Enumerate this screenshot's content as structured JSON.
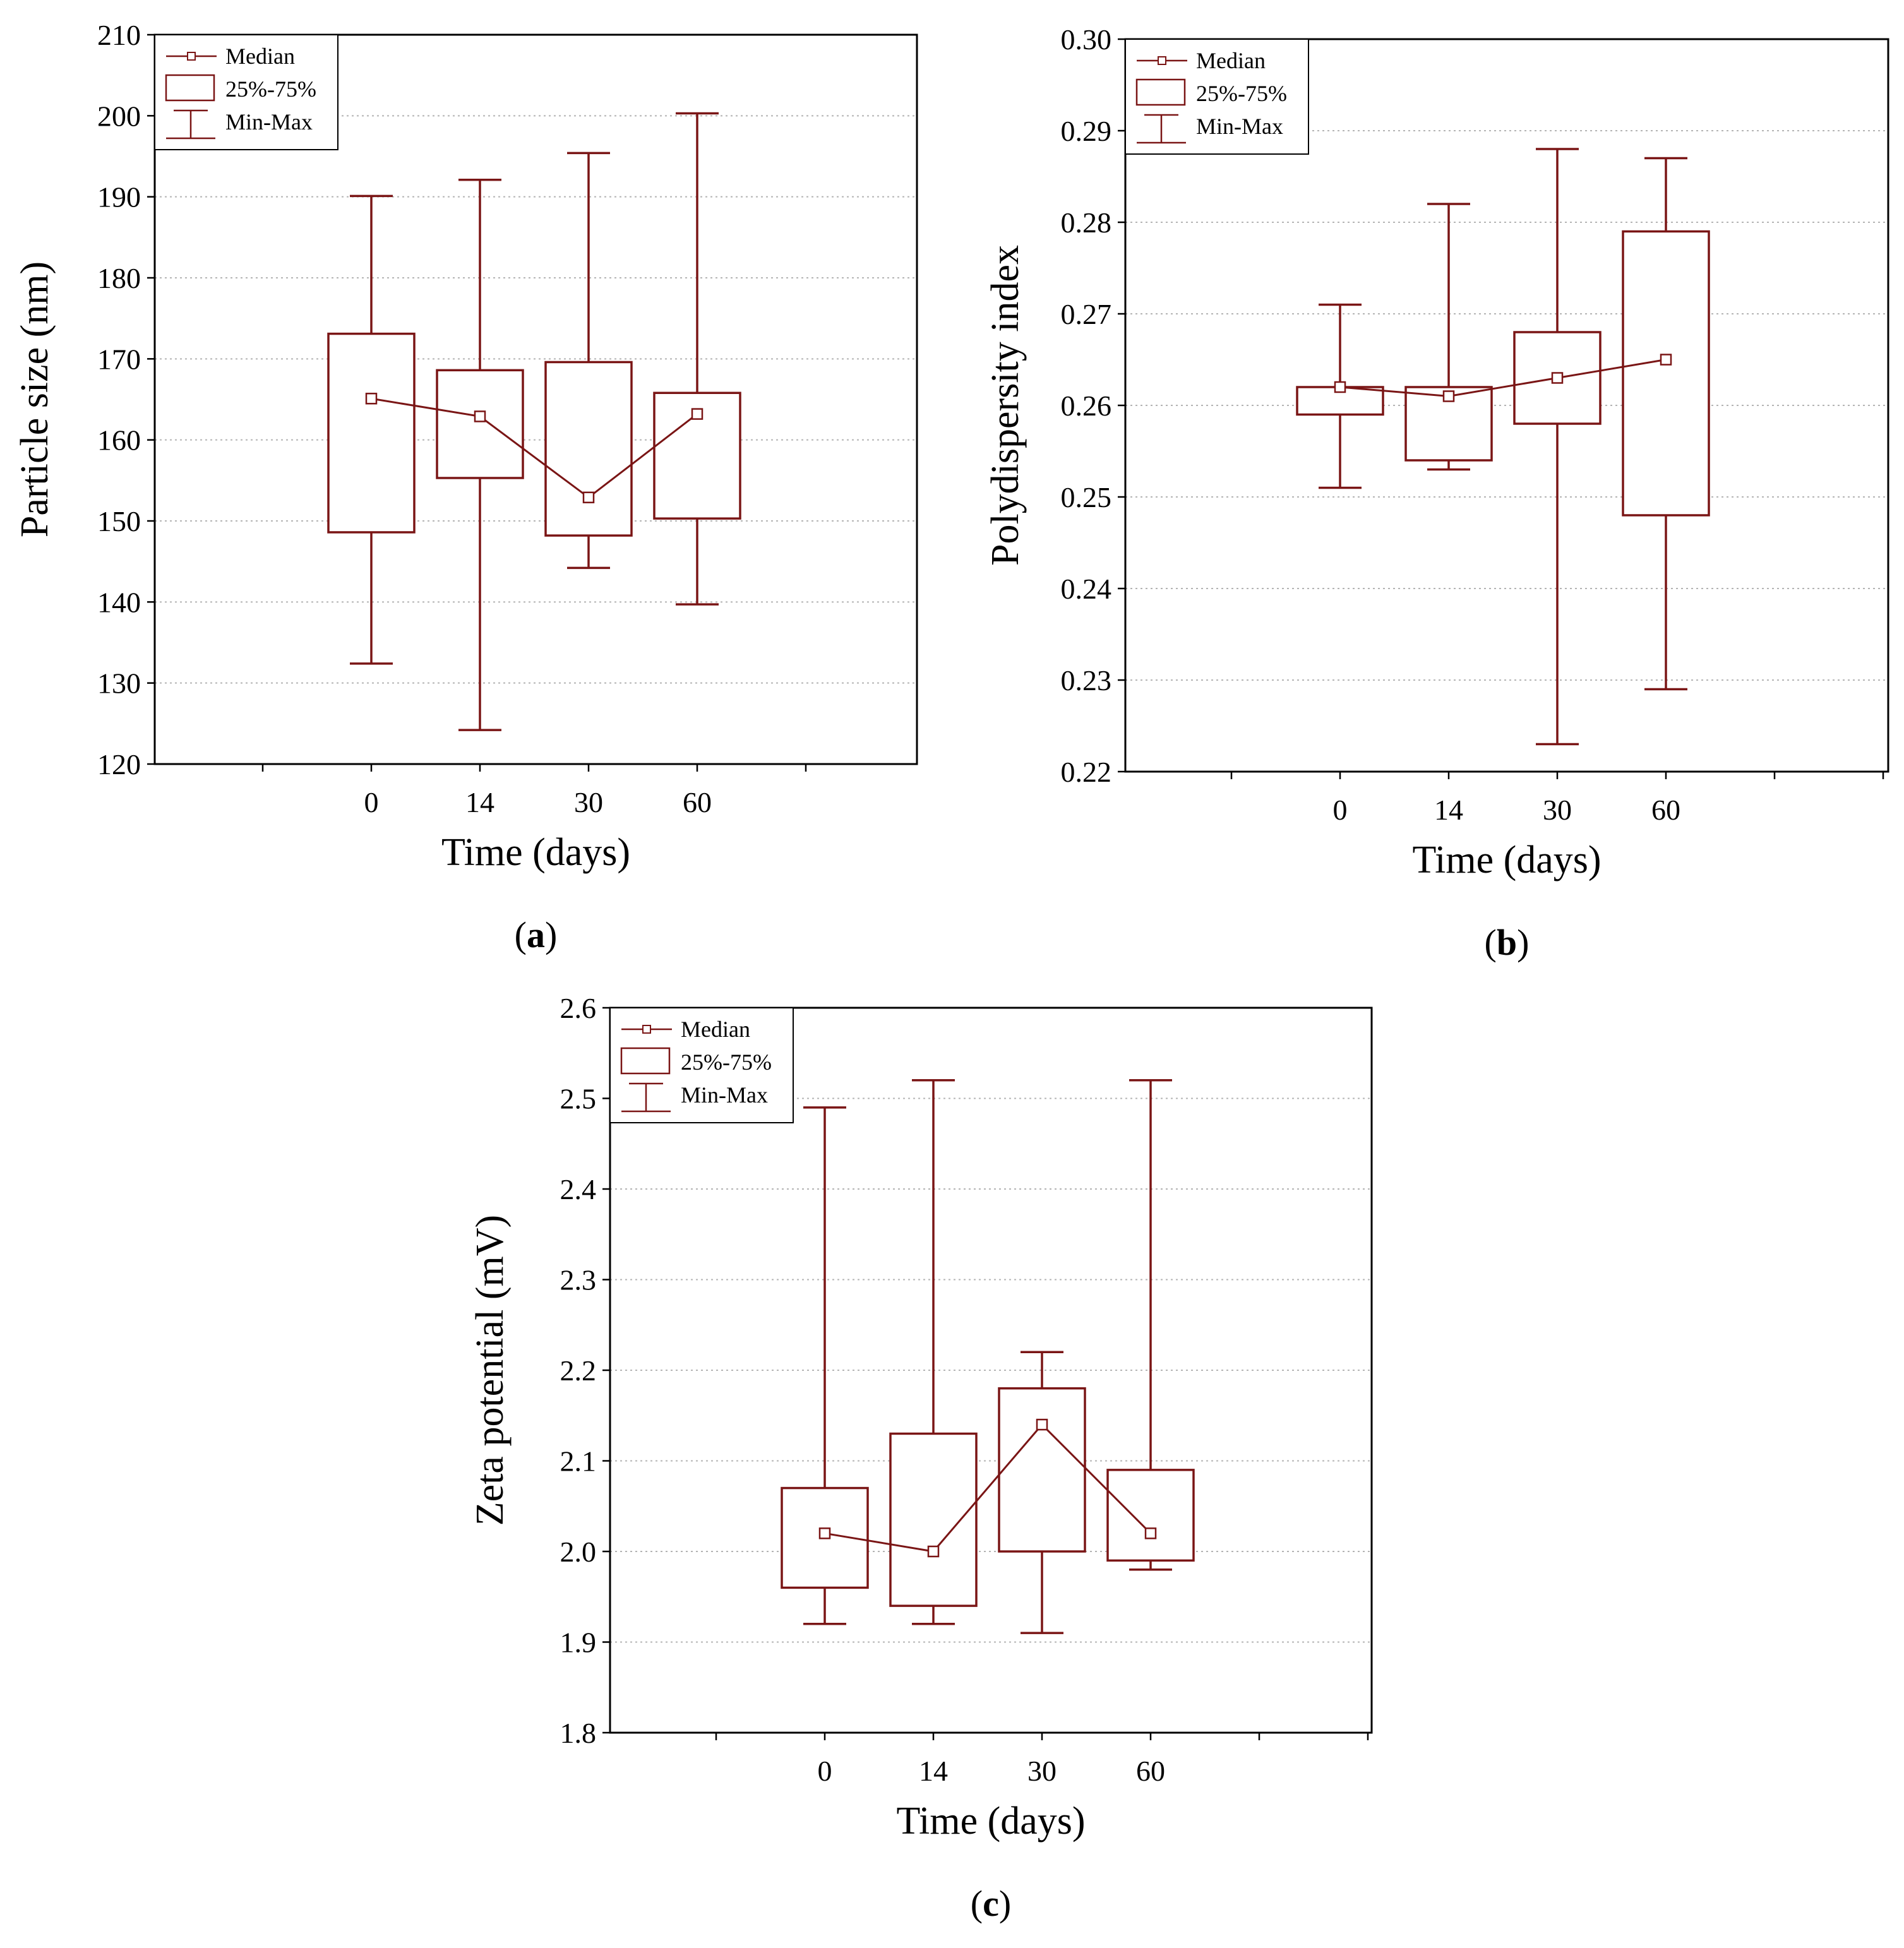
{
  "colors": {
    "series": "#7a1515",
    "axis": "#000000",
    "grid": "#b4b4b4",
    "background": "#ffffff"
  },
  "legend": {
    "median": "Median",
    "quartiles": "25%-75%",
    "minmax": "Min-Max"
  },
  "chart_data": [
    {
      "id": "a",
      "type": "boxplot",
      "panel_label": "a",
      "title": "",
      "xlabel": "Time (days)",
      "ylabel": "Particle size (nm)",
      "categories": [
        "0",
        "14",
        "30",
        "60"
      ],
      "ylim": [
        120,
        210
      ],
      "yticks": [
        "120",
        "130",
        "140",
        "150",
        "160",
        "170",
        "180",
        "190",
        "200",
        "210"
      ],
      "grid": true,
      "legend_position": "top-left",
      "series": [
        {
          "name": "Median",
          "values": [
            165.1,
            162.9,
            152.9,
            163.2
          ]
        },
        {
          "name": "25%",
          "values": [
            148.6,
            155.3,
            148.2,
            150.3
          ]
        },
        {
          "name": "75%",
          "values": [
            173.1,
            168.6,
            169.6,
            165.8
          ]
        },
        {
          "name": "Min",
          "values": [
            132.4,
            124.2,
            144.2,
            139.7
          ]
        },
        {
          "name": "Max",
          "values": [
            190.1,
            192.1,
            195.4,
            200.3
          ]
        }
      ]
    },
    {
      "id": "b",
      "type": "boxplot",
      "panel_label": "b",
      "title": "",
      "xlabel": "Time (days)",
      "ylabel": "Polydispersity index",
      "categories": [
        "0",
        "14",
        "30",
        "60"
      ],
      "ylim": [
        0.22,
        0.3
      ],
      "yticks": [
        "0.22",
        "0.23",
        "0.24",
        "0.25",
        "0.26",
        "0.27",
        "0.28",
        "0.29",
        "0.30"
      ],
      "grid": true,
      "legend_position": "top-left",
      "series": [
        {
          "name": "Median",
          "values": [
            0.262,
            0.261,
            0.263,
            0.265
          ]
        },
        {
          "name": "25%",
          "values": [
            0.259,
            0.254,
            0.258,
            0.248
          ]
        },
        {
          "name": "75%",
          "values": [
            0.262,
            0.262,
            0.268,
            0.279
          ]
        },
        {
          "name": "Min",
          "values": [
            0.251,
            0.253,
            0.223,
            0.229
          ]
        },
        {
          "name": "Max",
          "values": [
            0.271,
            0.282,
            0.288,
            0.287
          ]
        }
      ]
    },
    {
      "id": "c",
      "type": "boxplot",
      "panel_label": "c",
      "title": "",
      "xlabel": "Time (days)",
      "ylabel": "Zeta potential (mV)",
      "categories": [
        "0",
        "14",
        "30",
        "60"
      ],
      "ylim": [
        1.8,
        2.6
      ],
      "yticks": [
        "1.8",
        "1.9",
        "2.0",
        "2.1",
        "2.2",
        "2.3",
        "2.4",
        "2.5",
        "2.6"
      ],
      "grid": true,
      "legend_position": "top-left",
      "series": [
        {
          "name": "Median",
          "values": [
            2.02,
            2.0,
            2.14,
            2.02
          ]
        },
        {
          "name": "25%",
          "values": [
            1.96,
            1.94,
            2.0,
            1.99
          ]
        },
        {
          "name": "75%",
          "values": [
            2.07,
            2.13,
            2.18,
            2.09
          ]
        },
        {
          "name": "Min",
          "values": [
            1.92,
            1.92,
            1.91,
            1.98
          ]
        },
        {
          "name": "Max",
          "values": [
            2.49,
            2.52,
            2.22,
            2.52
          ]
        }
      ]
    }
  ]
}
